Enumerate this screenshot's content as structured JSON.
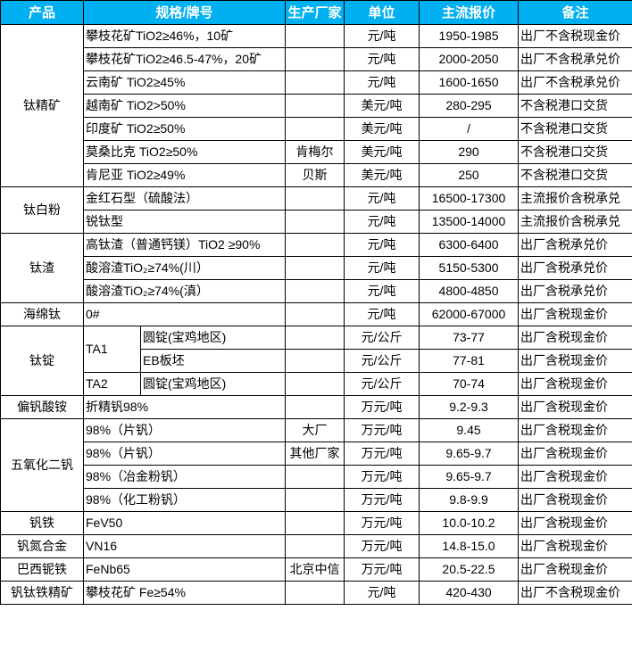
{
  "header": [
    "产品",
    "规格/牌号",
    "生产厂家",
    "单位",
    "主流报价",
    "备注"
  ],
  "colors": {
    "header_bg": "#00b0f0",
    "header_text": "#ffffff"
  },
  "rows": [
    {
      "product": "钛精矿",
      "product_rowspan": 7,
      "spec": "攀枝花矿TiO2≥46%，10矿",
      "maker": "",
      "unit": "元/吨",
      "price": "1950-1985",
      "note": "出厂不含税现金价"
    },
    {
      "spec": "攀枝花矿TiO2≥46.5-47%，20矿",
      "maker": "",
      "unit": "元/吨",
      "price": "2000-2050",
      "note": "出厂不含税承兑价"
    },
    {
      "spec": "云南矿 TiO2≥45%",
      "maker": "",
      "unit": "元/吨",
      "price": "1600-1650",
      "note": "出厂不含税承兑价"
    },
    {
      "spec": "越南矿 TiO2>50%",
      "maker": "",
      "unit": "美元/吨",
      "price": "280-295",
      "note": "不含税港口交货"
    },
    {
      "spec": "印度矿 TiO2≥50%",
      "maker": "",
      "unit": "美元/吨",
      "price": "/",
      "note": "不含税港口交货"
    },
    {
      "spec": "莫桑比克 TiO2≥50%",
      "maker": "肯梅尔",
      "unit": "美元/吨",
      "price": "290",
      "note": "不含税港口交货"
    },
    {
      "spec": "肯尼亚 TiO2≥49%",
      "maker": "贝斯",
      "unit": "美元/吨",
      "price": "250",
      "note": "不含税港口交货"
    },
    {
      "product": "钛白粉",
      "product_rowspan": 2,
      "spec": "金红石型（硫酸法）",
      "maker": "",
      "unit": "元/吨",
      "price": "16500-17300",
      "note": "主流报价含税承兑"
    },
    {
      "spec": "锐钛型",
      "maker": "",
      "unit": "元/吨",
      "price": "13500-14000",
      "note": "主流报价含税承兑"
    },
    {
      "product": "钛渣",
      "product_rowspan": 3,
      "spec": "高钛渣（普通钙镁）TiO2 ≥90%",
      "maker": "",
      "unit": "元/吨",
      "price": "6300-6400",
      "note": "出厂含税承兑价"
    },
    {
      "spec": "酸溶渣TiO₂≥74%(川）",
      "maker": "",
      "unit": "元/吨",
      "price": "5150-5300",
      "note": "出厂含税承兑价"
    },
    {
      "spec": "酸溶渣TiO₂≥74%(滇）",
      "maker": "",
      "unit": "元/吨",
      "price": "4800-4850",
      "note": "出厂含税承兑价"
    },
    {
      "product": "海绵钛",
      "product_rowspan": 1,
      "spec": "0#",
      "maker": "",
      "unit": "元/吨",
      "price": "62000-67000",
      "note": "出厂含税现金价"
    },
    {
      "product": "钛锭",
      "product_rowspan": 3,
      "grade": "TA1",
      "grade_rowspan": 2,
      "sub": "圆锭(宝鸡地区)",
      "maker": "",
      "unit": "元/公斤",
      "price": "73-77",
      "note": "出厂含税现金价"
    },
    {
      "sub": "EB板坯",
      "maker": "",
      "unit": "元/公斤",
      "price": "77-81",
      "note": "出厂含税现金价"
    },
    {
      "grade": "TA2",
      "grade_rowspan": 1,
      "sub": "圆锭(宝鸡地区)",
      "maker": "",
      "unit": "元/公斤",
      "price": "70-74",
      "note": "出厂含税现金价"
    },
    {
      "product": "偏钒酸铵",
      "product_rowspan": 1,
      "spec": "折精钒98%",
      "maker": "",
      "unit": "万元/吨",
      "price": "9.2-9.3",
      "note": "出厂含税现金价"
    },
    {
      "product": "五氧化二钒",
      "product_rowspan": 4,
      "spec": "98%（片钒）",
      "maker": "大厂",
      "unit": "万元/吨",
      "price": "9.45",
      "note": "出厂含税现金价"
    },
    {
      "spec": "98%（片钒）",
      "maker": "其他厂家",
      "unit": "万元/吨",
      "price": "9.65-9.7",
      "note": "出厂含税现金价"
    },
    {
      "spec": "98%（冶金粉钒）",
      "maker": "",
      "unit": "万元/吨",
      "price": "9.65-9.7",
      "note": "出厂含税现金价"
    },
    {
      "spec": "98%（化工粉钒）",
      "maker": "",
      "unit": "万元/吨",
      "price": "9.8-9.9",
      "note": "出厂含税现金价"
    },
    {
      "product": "钒铁",
      "product_rowspan": 1,
      "spec": "FeV50",
      "maker": "",
      "unit": "万元/吨",
      "price": "10.0-10.2",
      "note": "出厂含税现金价"
    },
    {
      "product": "钒氮合金",
      "product_rowspan": 1,
      "spec": "VN16",
      "maker": "",
      "unit": "万元/吨",
      "price": "14.8-15.0",
      "note": "出厂含税现金价"
    },
    {
      "product": "巴西铌铁",
      "product_rowspan": 1,
      "spec": "FeNb65",
      "maker": "北京中信",
      "unit": "万元/吨",
      "price": "20.5-22.5",
      "note": "出厂含税现金价"
    },
    {
      "product": "钒钛铁精矿",
      "product_rowspan": 1,
      "spec": "攀枝花矿 Fe≥54%",
      "maker": "",
      "unit": "元/吨",
      "price": "420-430",
      "note": "出厂不含税现金价"
    }
  ]
}
